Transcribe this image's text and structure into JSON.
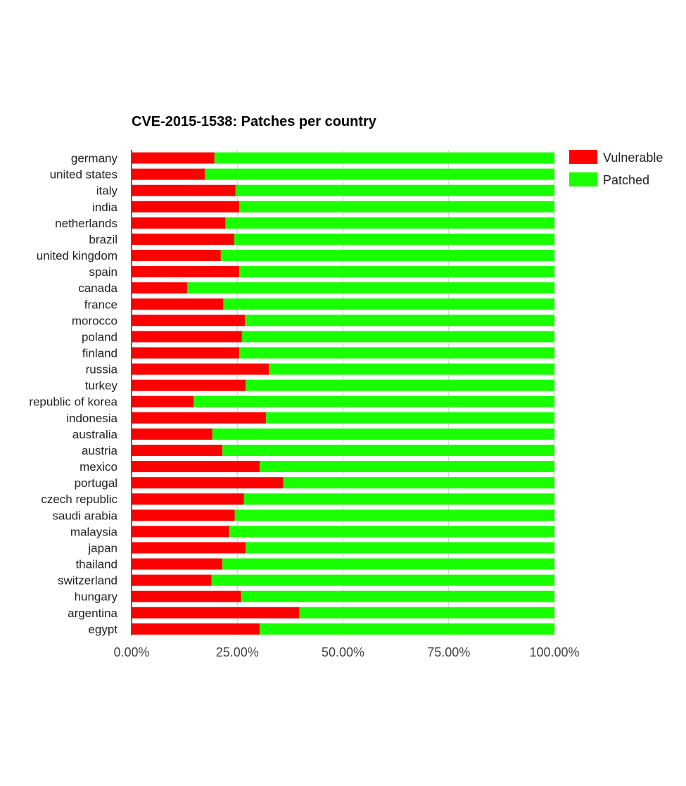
{
  "chart_data": {
    "type": "bar",
    "orientation": "horizontal",
    "stacked": true,
    "title": "CVE-2015-1538: Patches per country",
    "xlabel": "",
    "ylabel": "",
    "xlim": [
      0,
      100
    ],
    "x_ticks": [
      "0.00%",
      "25.00%",
      "50.00%",
      "75.00%",
      "100.00%"
    ],
    "grid": "vertical",
    "legend_position": "right",
    "categories": [
      "germany",
      "united states",
      "italy",
      "india",
      "netherlands",
      "brazil",
      "united kingdom",
      "spain",
      "canada",
      "france",
      "morocco",
      "poland",
      "finland",
      "russia",
      "turkey",
      "republic of korea",
      "indonesia",
      "australia",
      "austria",
      "mexico",
      "portugal",
      "czech republic",
      "saudi arabia",
      "malaysia",
      "japan",
      "thailand",
      "switzerland",
      "hungary",
      "argentina",
      "egypt"
    ],
    "series": [
      {
        "name": "Vulnerable",
        "color": "#ff0000",
        "values": [
          19.6,
          17.3,
          24.6,
          25.5,
          22.2,
          24.3,
          21.1,
          25.5,
          13.2,
          21.7,
          26.8,
          26.1,
          25.5,
          32.5,
          27.0,
          14.7,
          31.8,
          19.1,
          21.5,
          30.3,
          35.9,
          26.6,
          24.4,
          23.1,
          27.0,
          21.5,
          18.9,
          25.9,
          39.7,
          30.3
        ]
      },
      {
        "name": "Patched",
        "color": "#19ff00",
        "values": [
          80.4,
          82.7,
          75.4,
          74.5,
          77.8,
          75.7,
          78.9,
          74.5,
          86.8,
          78.3,
          73.2,
          73.9,
          74.5,
          67.5,
          73.0,
          85.3,
          68.2,
          80.9,
          78.5,
          69.7,
          64.1,
          73.4,
          75.6,
          76.9,
          73.0,
          78.5,
          81.1,
          74.1,
          60.3,
          69.7
        ]
      }
    ]
  }
}
